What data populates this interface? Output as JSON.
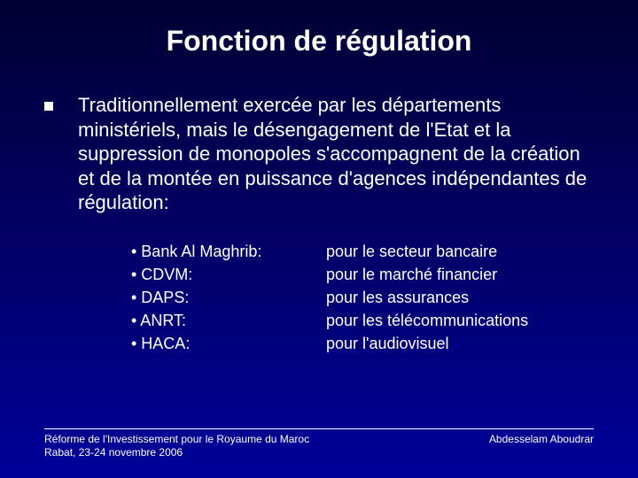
{
  "colors": {
    "background_top": "#000033",
    "background_mid": "#000066",
    "background_bottom": "#000099",
    "text": "#ffffff",
    "bullet": "#ffffff",
    "divider": "#ffffff"
  },
  "typography": {
    "title_fontsize": 32,
    "title_weight": "bold",
    "body_fontsize": 22,
    "items_fontsize": 18,
    "footer_fontsize": 12,
    "font_family": "Verdana"
  },
  "title": "Fonction de régulation",
  "main_text": "Traditionnellement exercée par les départements ministériels, mais le désengagement de l'Etat et la suppression de monopoles s'accompagnent de la création et de la montée en puissance d'agences indépendantes de régulation:",
  "items": [
    {
      "left": "• Bank Al Maghrib:",
      "right": "pour le secteur bancaire"
    },
    {
      "left": "• CDVM:",
      "right": "pour le marché financier"
    },
    {
      "left": "• DAPS:",
      "right": "pour les assurances"
    },
    {
      "left": "• ANRT:",
      "right": "pour les télécommunications"
    },
    {
      "left": "• HACA:",
      "right": "pour l'audiovisuel"
    }
  ],
  "footer": {
    "left_line1": "Réforme de l'Investissement pour le Royaume du Maroc",
    "left_line2": "Rabat, 23-24 novembre 2006",
    "right": "Abdesselam Aboudrar"
  }
}
